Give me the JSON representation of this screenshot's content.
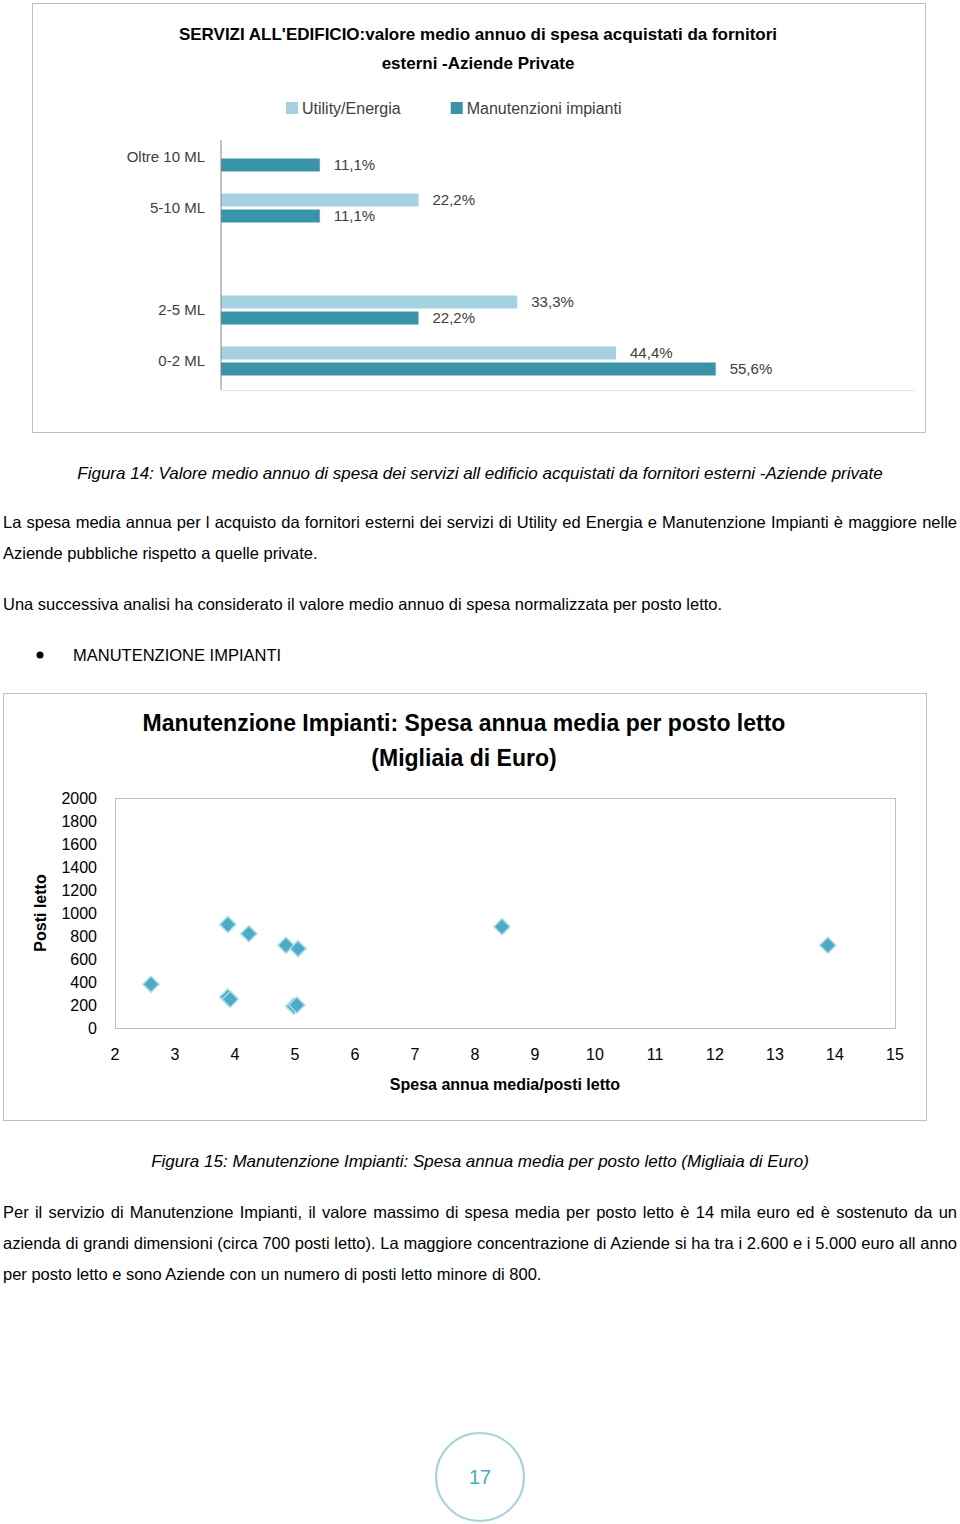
{
  "chart_data": [
    {
      "type": "bar",
      "orientation": "horizontal",
      "title": "SERVIZI ALL'EDIFICIO:valore medio annuo di spesa acquistati da fornitori esterni -Aziende Private",
      "categories": [
        "Oltre 10 ML",
        "5-10 ML",
        null,
        "2-5 ML",
        "0-2 ML"
      ],
      "series": [
        {
          "name": "Utility/Energia",
          "color": "#a6d1e0",
          "values": [
            null,
            22.2,
            null,
            33.3,
            44.4
          ],
          "value_labels": [
            null,
            "22,2%",
            null,
            "33,3%",
            "44,4%"
          ]
        },
        {
          "name": "Manutenzioni impianti",
          "color": "#3a94a9",
          "values": [
            11.1,
            11.1,
            null,
            22.2,
            55.6
          ],
          "value_labels": [
            "11,1%",
            "11,1%",
            null,
            "22,2%",
            "55,6%"
          ]
        }
      ],
      "xlim": [
        0,
        78
      ],
      "data_labels": true,
      "tick_labels": "y",
      "legend": "top"
    },
    {
      "type": "scatter",
      "title": "Manutenzione Impianti: Spesa annua media per posto letto (Migliaia di Euro)",
      "xlabel": "Spesa annua media/posti letto",
      "ylabel": "Posti letto",
      "x": [
        2.6,
        3.88,
        4.23,
        4.85,
        5.05,
        3.88,
        3.92,
        4.98,
        5.03,
        8.45,
        13.88
      ],
      "values": [
        380,
        900,
        820,
        720,
        690,
        270,
        250,
        190,
        200,
        880,
        720
      ],
      "color": "#4bacc6",
      "marker": "diamond",
      "xlim": [
        2,
        15
      ],
      "ylim": [
        0,
        2000
      ],
      "xticks": [
        2,
        3,
        4,
        5,
        6,
        7,
        8,
        9,
        10,
        11,
        12,
        13,
        14,
        15
      ],
      "yticks": [
        0,
        200,
        400,
        600,
        800,
        1000,
        1200,
        1400,
        1600,
        1800,
        2000
      ],
      "grid": false
    }
  ],
  "document": {
    "caption_14": "Figura 14: Valore medio annuo di spesa dei servizi all edificio acquistati da fornitori esterni -Aziende private",
    "paragraphs": [
      "La spesa media annua per l acquisto da fornitori esterni dei servizi di Utility ed Energia e Manutenzione Impianti è maggiore nelle Aziende pubbliche rispetto a quelle private.",
      "Una successiva analisi ha considerato il valore medio annuo di spesa normalizzata per posto letto."
    ],
    "bullet": "MANUTENZIONE IMPIANTI",
    "caption_15": "Figura 15: Manutenzione Impianti: Spesa annua media per posto letto (Migliaia di Euro)",
    "paragraph_after": "Per il servizio di Manutenzione Impianti, il valore massimo di spesa media per posto letto è 14 mila euro ed è sostenuto da un azienda di grandi dimensioni (circa 700 posti letto). La maggiore concentrazione di Aziende si ha tra i 2.600 e i 5.000 euro all anno per posto letto e sono Aziende con un numero di posti letto minore di 800.",
    "page_number": 17
  }
}
